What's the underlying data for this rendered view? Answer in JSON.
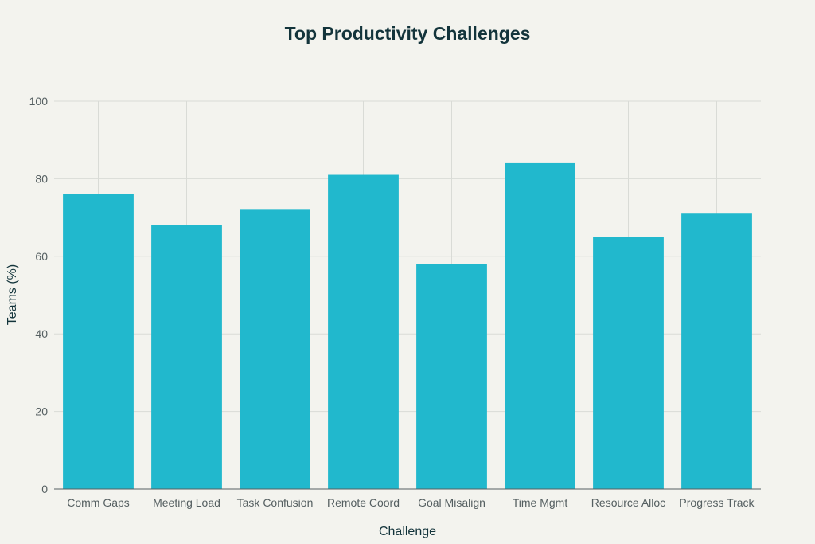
{
  "chart_data": {
    "type": "bar",
    "title": "Top Productivity Challenges",
    "xlabel": "Challenge",
    "ylabel": "Teams (%)",
    "categories": [
      "Comm Gaps",
      "Meeting Load",
      "Task Confusion",
      "Remote Coord",
      "Goal Misalign",
      "Time Mgmt",
      "Resource Alloc",
      "Progress Track"
    ],
    "values": [
      76,
      68,
      72,
      81,
      58,
      84,
      65,
      71
    ],
    "ylim": [
      0,
      100
    ],
    "yticks": [
      0,
      20,
      40,
      60,
      80,
      100
    ],
    "grid": true,
    "legend": false,
    "colors": {
      "bar": "#21b8cd",
      "background": "#f3f3ee"
    }
  }
}
